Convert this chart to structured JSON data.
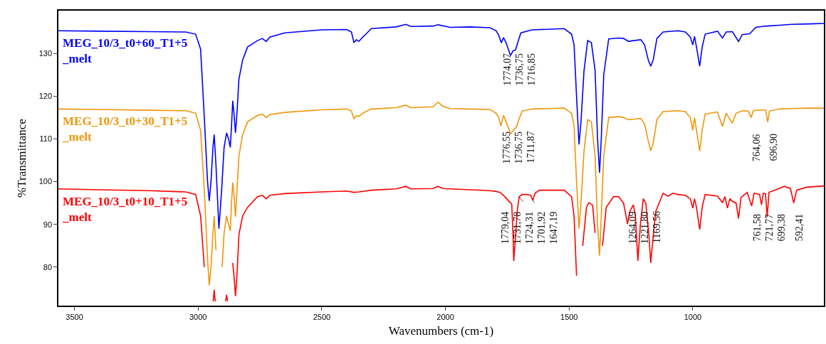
{
  "chart_data": {
    "type": "line",
    "xlabel": "Wavenumbers (cm-1)",
    "ylabel": "%Transmittance",
    "xlim": [
      3565,
      470
    ],
    "xticks": [
      3500,
      3000,
      2500,
      2000,
      1500,
      1000
    ],
    "ylim": [
      71,
      140
    ],
    "yticks": [
      80,
      90,
      100,
      110,
      120,
      130
    ],
    "grid": false,
    "legend": false,
    "marker": "none",
    "line_style": "solid",
    "series": [
      {
        "name": "MEG_10/3_t0+60_T1+5_melt",
        "color": "#0000ff",
        "x": [
          3565,
          3400,
          3200,
          3050,
          3010,
          2990,
          2975,
          2962,
          2955,
          2948,
          2940,
          2935,
          2928,
          2916,
          2905,
          2895,
          2885,
          2877,
          2870,
          2865,
          2860,
          2855,
          2849,
          2843,
          2835,
          2820,
          2800,
          2760,
          2740,
          2725,
          2710,
          2650,
          2500,
          2400,
          2380,
          2370,
          2360,
          2350,
          2335,
          2320,
          2300,
          2200,
          2160,
          2140,
          2050,
          2030,
          1980,
          1900,
          1820,
          1795,
          1785,
          1774,
          1765,
          1755,
          1737,
          1727,
          1717,
          1705,
          1695,
          1650,
          1520,
          1490,
          1480,
          1470,
          1460,
          1452,
          1440,
          1425,
          1410,
          1395,
          1385,
          1377,
          1370,
          1360,
          1340,
          1300,
          1280,
          1260,
          1240,
          1210,
          1195,
          1180,
          1170,
          1160,
          1145,
          1120,
          1060,
          1030,
          1010,
          1000,
          993,
          985,
          972,
          962,
          950,
          900,
          880,
          865,
          840,
          815,
          800,
          770,
          745,
          720,
          700,
          650,
          600,
          530,
          470
        ],
        "values": [
          135.3,
          135.2,
          135.1,
          135.0,
          134.5,
          131,
          115,
          100,
          95.5,
          100,
          108,
          111,
          104,
          89,
          98,
          108,
          111.4,
          110,
          108,
          113,
          118.9,
          116,
          111.4,
          116,
          124,
          128.5,
          131.5,
          133,
          133.5,
          132.8,
          133.8,
          134.8,
          135.5,
          135.6,
          135,
          132.5,
          133.2,
          132.8,
          133.8,
          134.6,
          135.8,
          136.2,
          136.8,
          136.3,
          136.4,
          136.7,
          136.1,
          136.2,
          136.0,
          135.3,
          134.3,
          132.5,
          133.7,
          132.5,
          129.5,
          130.6,
          130.8,
          133,
          134.8,
          135.5,
          135.8,
          134.5,
          132,
          120,
          108.7,
          114,
          125.8,
          133.0,
          132.5,
          126,
          110,
          102.1,
          110,
          125,
          133.4,
          133.6,
          133.5,
          132.8,
          133.0,
          133.2,
          132,
          128.5,
          127,
          128.5,
          133.5,
          135,
          135.3,
          135.0,
          133.8,
          132,
          134,
          131.5,
          127,
          131.5,
          134.5,
          135.2,
          133.6,
          135,
          135.1,
          132.8,
          134.4,
          134.6,
          136.1,
          136.3,
          136.4,
          136.6,
          136.8,
          136.9,
          137
        ]
      },
      {
        "name": "MEG_10/3_t0+30_T1+5_melt",
        "color": "#f0960a",
        "x": [
          3565,
          3400,
          3200,
          3050,
          3010,
          2990,
          2975,
          2962,
          2955,
          2948,
          2940,
          2935,
          2928,
          2922,
          2910,
          2903,
          2895,
          2885,
          2877,
          2870,
          2865,
          2860,
          2855,
          2849,
          2843,
          2835,
          2820,
          2800,
          2760,
          2740,
          2725,
          2710,
          2650,
          2500,
          2400,
          2380,
          2370,
          2360,
          2350,
          2335,
          2300,
          2200,
          2160,
          2140,
          2050,
          2030,
          2010,
          1980,
          1900,
          1820,
          1795,
          1785,
          1776,
          1765,
          1755,
          1737,
          1725,
          1712,
          1700,
          1690,
          1650,
          1520,
          1490,
          1480,
          1470,
          1460,
          1452,
          1440,
          1425,
          1410,
          1395,
          1385,
          1377,
          1370,
          1360,
          1340,
          1300,
          1280,
          1260,
          1240,
          1210,
          1195,
          1180,
          1170,
          1160,
          1145,
          1120,
          1060,
          1030,
          1010,
          1000,
          993,
          985,
          972,
          962,
          950,
          900,
          880,
          865,
          840,
          825,
          800,
          775,
          764,
          755,
          720,
          705,
          697,
          690,
          650,
          600,
          530,
          470
        ],
        "values": [
          117.0,
          116.9,
          116.7,
          116.6,
          116,
          112,
          98,
          82,
          75.7,
          80,
          88,
          92,
          84,
          null,
          null,
          80,
          88,
          92,
          90,
          88.5,
          95,
          99.8,
          97,
          91.8,
          98,
          106,
          111,
          114,
          115.5,
          115.8,
          115,
          115.7,
          116.2,
          116.8,
          117,
          116.5,
          114.7,
          115.4,
          115.3,
          116,
          117,
          117.3,
          117.9,
          117.3,
          117.5,
          118.6,
          117.6,
          117.1,
          117,
          116.9,
          116,
          115,
          113,
          115.5,
          114,
          111.2,
          112,
          112.9,
          115,
          116.5,
          117,
          117.2,
          116,
          113,
          100,
          89,
          95,
          107,
          114.5,
          114,
          106,
          90,
          82.7,
          92,
          106,
          115,
          115.2,
          115.0,
          114.5,
          114.6,
          114.8,
          113.5,
          109.5,
          107.2,
          109,
          114.5,
          116.4,
          116.6,
          116.4,
          115,
          112,
          115,
          112,
          107.2,
          112,
          115.8,
          116.3,
          112.9,
          116,
          113.7,
          116,
          116.6,
          116.5,
          115,
          116.6,
          116.8,
          116.7,
          113.9,
          116.5,
          117,
          117.1,
          117.2,
          117.2
        ]
      },
      {
        "name": "MEG_10/3_t0+10_T1+5_melt",
        "color": "#ff0000",
        "x": [
          3565,
          3400,
          3200,
          3050,
          3010,
          2990,
          2975,
          2965,
          2945,
          2939,
          2935,
          2931,
          2928,
          2905,
          2895,
          2889,
          2885,
          2881,
          2877,
          2868,
          2860,
          2855,
          2849,
          2843,
          2835,
          2820,
          2800,
          2760,
          2740,
          2725,
          2710,
          2650,
          2500,
          2400,
          2370,
          2350,
          2300,
          2200,
          2160,
          2140,
          2050,
          2030,
          2010,
          1900,
          1820,
          1795,
          1779,
          1760,
          1745,
          1732,
          1727,
          1724,
          1718,
          1710,
          1702,
          1690,
          1670,
          1655,
          1647,
          1638,
          1620,
          1520,
          1490,
          1480,
          1470,
          1463,
          1455,
          1445,
          1430,
          1420,
          1405,
          1395,
          1385,
          1372,
          1365,
          1350,
          1320,
          1300,
          1280,
          1264,
          1255,
          1240,
          1232,
          1222,
          1212,
          1200,
          1190,
          1178,
          1170,
          1162,
          1150,
          1120,
          1100,
          1080,
          1060,
          1030,
          1010,
          1000,
          993,
          985,
          972,
          962,
          950,
          900,
          880,
          870,
          860,
          850,
          840,
          825,
          815,
          805,
          780,
          762,
          752,
          730,
          722,
          715,
          706,
          699,
          692,
          660,
          630,
          605,
          592,
          580,
          540,
          470
        ],
        "values": [
          98.3,
          98.1,
          97.9,
          97.6,
          97,
          92,
          80,
          null,
          null,
          72,
          74.7,
          72,
          null,
          null,
          null,
          72,
          73.5,
          72,
          null,
          null,
          81,
          78,
          73.2,
          78,
          87.6,
          92,
          94,
          96.5,
          96.8,
          96,
          96.8,
          97.2,
          97.6,
          97.8,
          97.5,
          97.6,
          98,
          98.3,
          98.9,
          98.3,
          98.4,
          98.9,
          98.4,
          98.1,
          97.9,
          97.7,
          97.5,
          96.5,
          95.5,
          94.8,
          88,
          81.5,
          86,
          93,
          96.5,
          97.0,
          97.0,
          96.8,
          95.6,
          97.3,
          98,
          98,
          96.5,
          92,
          78,
          null,
          null,
          85,
          94,
          95.1,
          94.5,
          88,
          null,
          null,
          85,
          94,
          96.5,
          96.5,
          95,
          90.1,
          93,
          94.6,
          92,
          81.5,
          90,
          96,
          95,
          88,
          81,
          86,
          93,
          97.3,
          96.6,
          97.3,
          97,
          96.8,
          96,
          93.8,
          96,
          94,
          88.8,
          94,
          97,
          96.6,
          95.1,
          96.5,
          93.8,
          96,
          95.4,
          95,
          91.4,
          96.3,
          97.5,
          94.3,
          97.3,
          97,
          94.6,
          97.3,
          97.2,
          91.8,
          97.5,
          98.2,
          98.9,
          98.4,
          95,
          98,
          98.7,
          99
        ]
      }
    ],
    "annotations": [
      {
        "text": "1774,07",
        "x": 1774.07,
        "y": 132.5
      },
      {
        "text": "1736,75",
        "x": 1736.75,
        "y": 129.5
      },
      {
        "text": "1716,85",
        "x": 1716.85,
        "y": 130.8
      },
      {
        "text": "1776,55",
        "x": 1776.55,
        "y": 113
      },
      {
        "text": "1736,75",
        "x": 1736.75,
        "y": 111.2
      },
      {
        "text": "1711,87",
        "x": 1711.87,
        "y": 112.9
      },
      {
        "text": "764,06",
        "x": 764.06,
        "y": 115
      },
      {
        "text": "696,90",
        "x": 696.9,
        "y": 113.9
      },
      {
        "text": "1779,04",
        "x": 1779.04,
        "y": 97.5
      },
      {
        "text": "1731,78",
        "x": 1731.78,
        "y": 94.8
      },
      {
        "text": "1724,31",
        "x": 1724.31,
        "y": 81.5
      },
      {
        "text": "1701,92",
        "x": 1701.92,
        "y": 96.5
      },
      {
        "text": "1647,19",
        "x": 1647.19,
        "y": 95.6
      },
      {
        "text": "1264,09",
        "x": 1264.09,
        "y": 90.1
      },
      {
        "text": "1221,80",
        "x": 1221.8,
        "y": 81.5
      },
      {
        "text": "1169,56",
        "x": 1169.56,
        "y": 81
      },
      {
        "text": "761,58",
        "x": 761.58,
        "y": 94.3
      },
      {
        "text": "721,77",
        "x": 721.77,
        "y": 94.6
      },
      {
        "text": "699,38",
        "x": 699.38,
        "y": 91.8
      },
      {
        "text": "592,41",
        "x": 592.41,
        "y": 95
      }
    ]
  }
}
